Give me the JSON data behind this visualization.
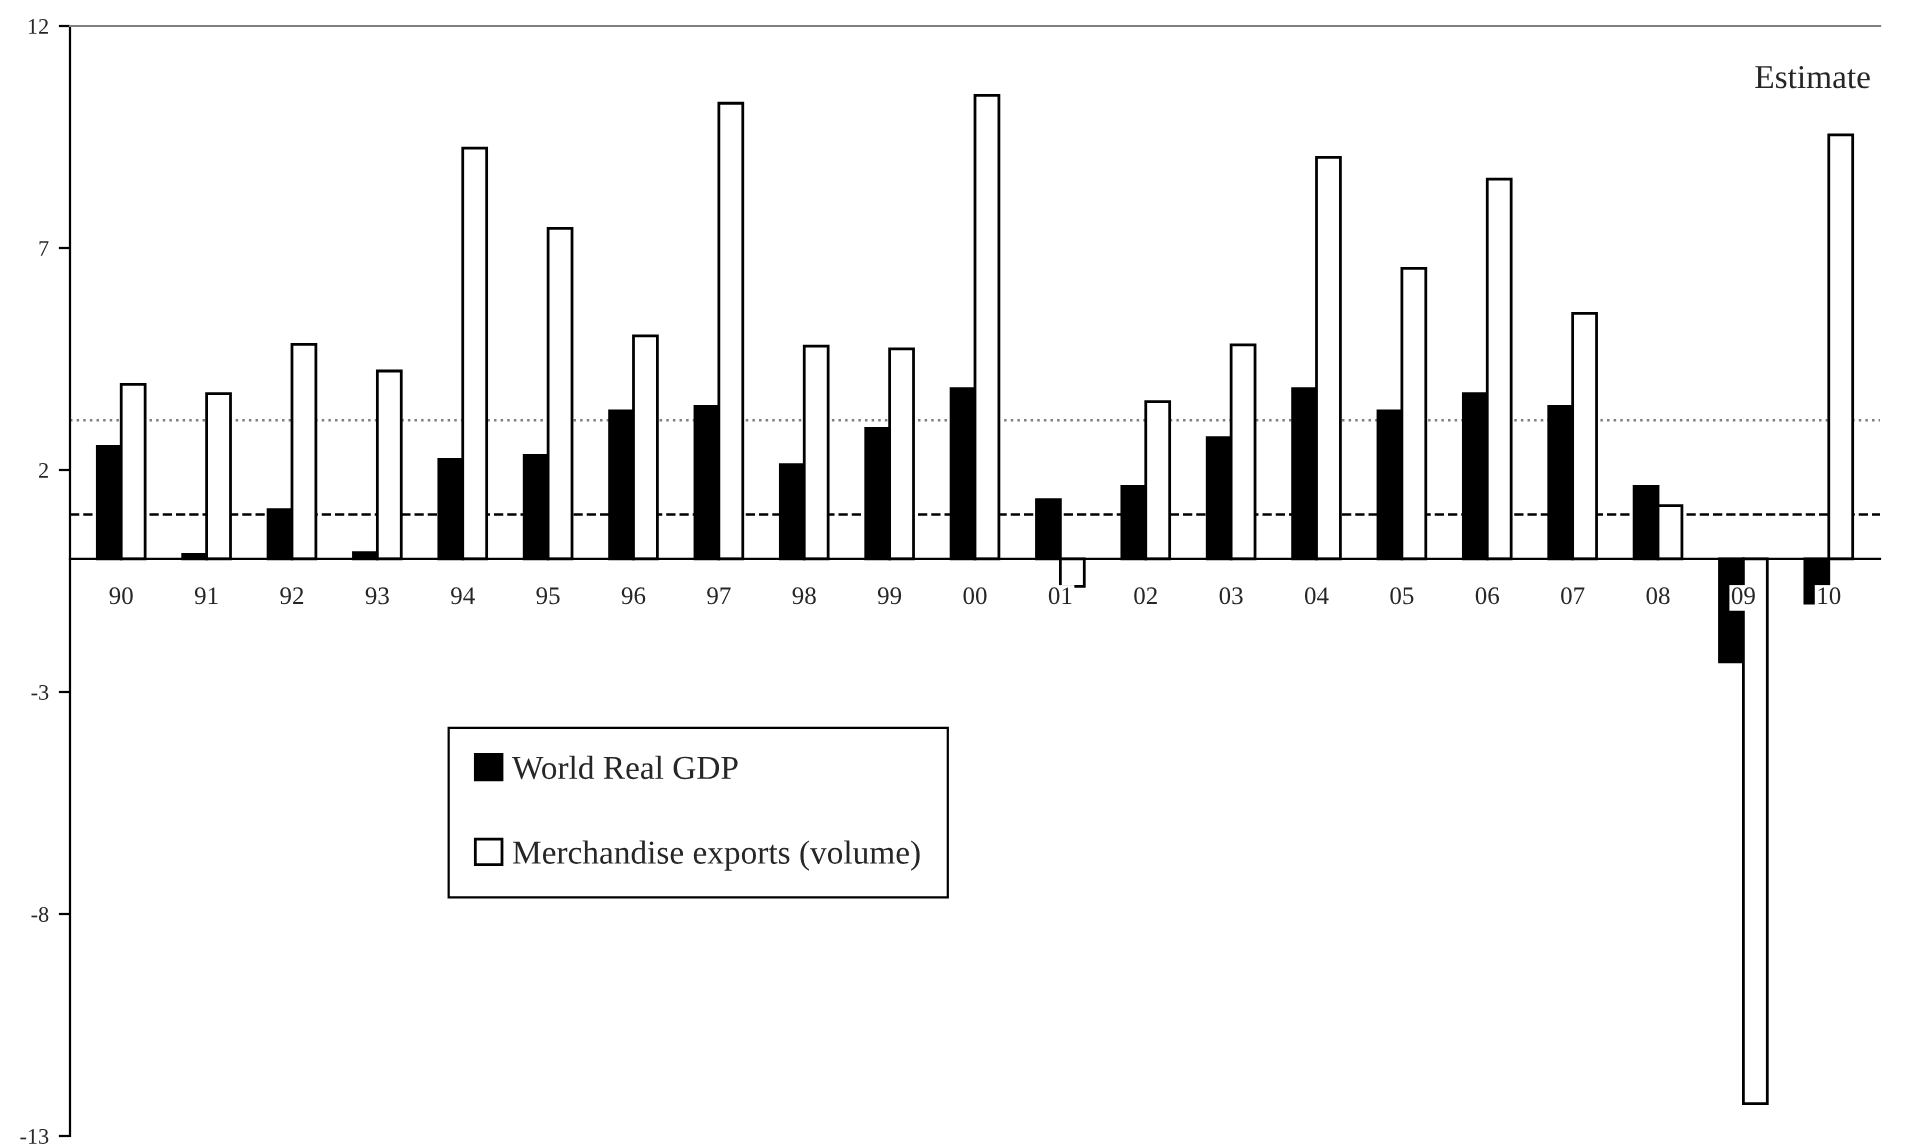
{
  "chart_data": {
    "type": "bar",
    "categories": [
      "90",
      "91",
      "92",
      "93",
      "94",
      "95",
      "96",
      "97",
      "98",
      "99",
      "00",
      "01",
      "02",
      "03",
      "04",
      "05",
      "06",
      "07",
      "08",
      "09",
      "10"
    ],
    "series": [
      {
        "name": "World Real GDP",
        "color": "#000000",
        "values": [
          2.53,
          0.1,
          1.11,
          0.14,
          2.24,
          2.33,
          3.33,
          3.43,
          2.12,
          2.94,
          3.83,
          1.33,
          1.63,
          2.73,
          3.83,
          3.33,
          3.72,
          3.43,
          1.63,
          -2.32,
          -1.0
        ]
      },
      {
        "name": "Merchandise exports (volume)",
        "color": "#ffffff",
        "values": [
          3.93,
          3.72,
          4.83,
          4.23,
          9.25,
          7.44,
          5.02,
          10.26,
          4.79,
          4.73,
          10.44,
          -0.62,
          3.54,
          4.82,
          9.04,
          6.54,
          8.55,
          5.53,
          1.2,
          -12.27,
          9.55
        ]
      }
    ],
    "ylim": [
      -13,
      12
    ],
    "yticks": [
      -13,
      -8,
      -3,
      2,
      7,
      12
    ],
    "ref_lines": [
      {
        "axis": "y",
        "value": 3.12,
        "label": null,
        "color": "#808080",
        "line_style": "dotted"
      },
      {
        "axis": "y",
        "value": 1.0,
        "label": null,
        "color": "#000000",
        "line_style": "dashed"
      }
    ],
    "annotations": [
      "Estimate"
    ],
    "legend": "bottom left",
    "grid": false
  }
}
